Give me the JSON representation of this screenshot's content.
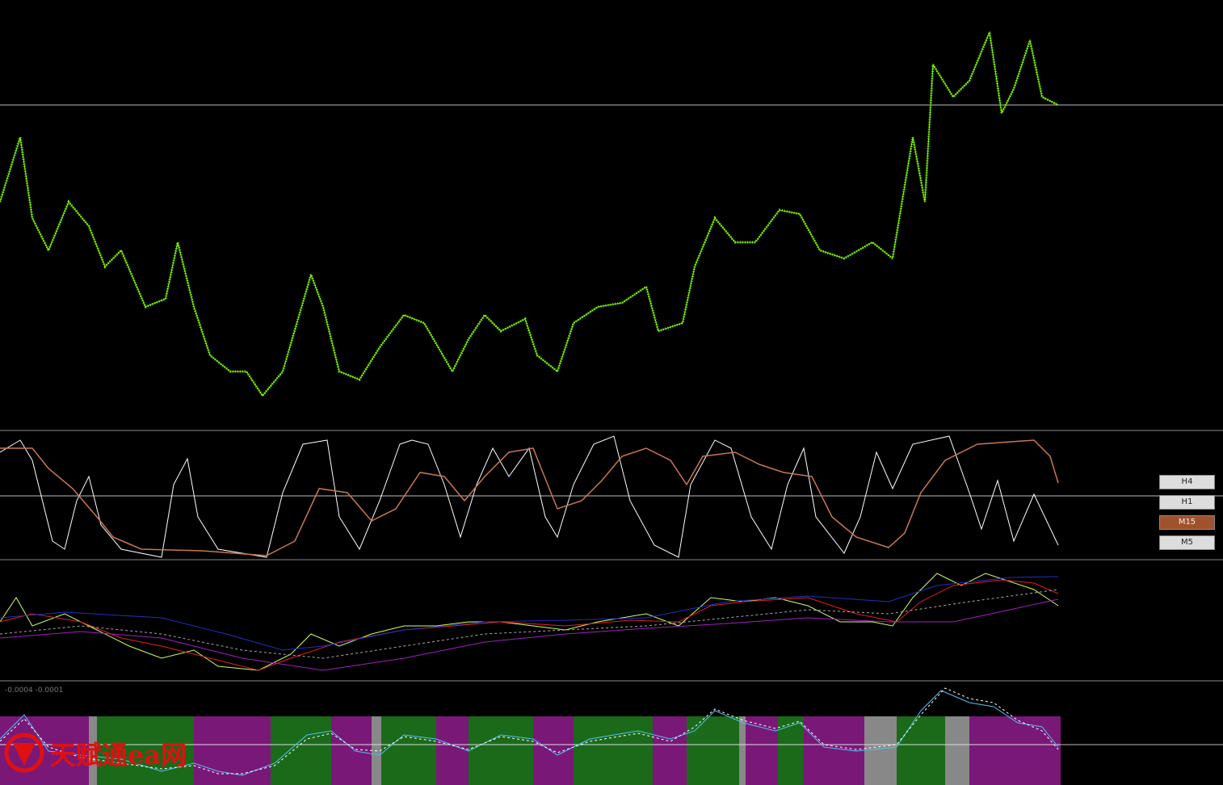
{
  "timeframes": [
    "H4",
    "H1",
    "M15",
    "M5"
  ],
  "active_timeframe": "M15",
  "indicator_label": "-0.0004 -0.0001",
  "watermark": "天赋通ea网"
}
